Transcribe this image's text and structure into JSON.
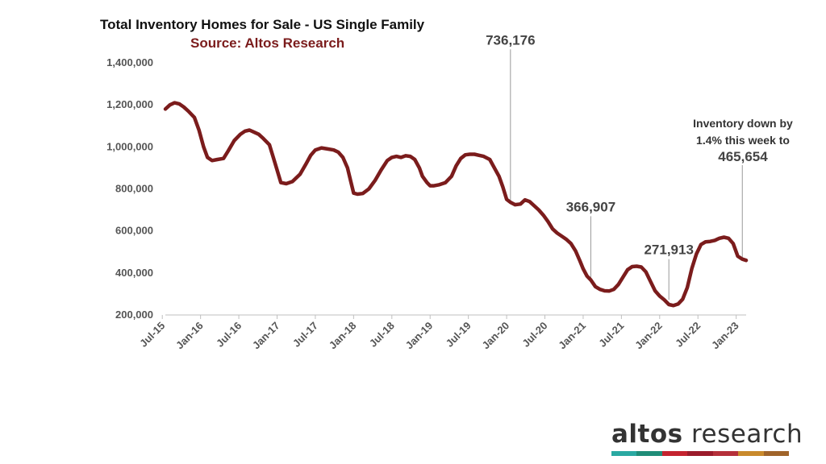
{
  "chart_data": {
    "type": "line",
    "title": "Total Inventory Homes for Sale - US Single Family",
    "subtitle": "Source: Altos Research",
    "ylim": [
      200000,
      1400000
    ],
    "yticks": [
      200000,
      400000,
      600000,
      800000,
      1000000,
      1200000,
      1400000
    ],
    "ytick_labels": [
      "200,000",
      "400,000",
      "600,000",
      "800,000",
      "1,000,000",
      "1,200,000",
      "1,400,000"
    ],
    "xlim": [
      2015.54,
      2023.13
    ],
    "xticks": [
      2015.5,
      2016.0,
      2016.5,
      2017.0,
      2017.5,
      2018.0,
      2018.5,
      2019.0,
      2019.5,
      2020.0,
      2020.5,
      2021.0,
      2021.5,
      2022.0,
      2022.5,
      2023.0
    ],
    "xtick_labels": [
      "Jul-15",
      "Jan-16",
      "Jul-16",
      "Jan-17",
      "Jul-17",
      "Jan-18",
      "Jul-18",
      "Jan-19",
      "Jul-19",
      "Jan-20",
      "Jul-20",
      "Jan-21",
      "Jul-21",
      "Jan-22",
      "Jul-22",
      "Jan-23"
    ],
    "line_color": "#7b1c1c",
    "series": [
      {
        "name": "Total Inventory",
        "x": [
          2015.54,
          2015.6,
          2015.66,
          2015.72,
          2015.78,
          2015.84,
          2015.92,
          2015.98,
          2016.04,
          2016.09,
          2016.15,
          2016.22,
          2016.3,
          2016.36,
          2016.44,
          2016.52,
          2016.58,
          2016.64,
          2016.7,
          2016.76,
          2016.82,
          2016.9,
          2016.95,
          2017.0,
          2017.05,
          2017.12,
          2017.2,
          2017.3,
          2017.38,
          2017.44,
          2017.5,
          2017.58,
          2017.66,
          2017.74,
          2017.8,
          2017.86,
          2017.92,
          2017.96,
          2018.0,
          2018.05,
          2018.12,
          2018.2,
          2018.28,
          2018.36,
          2018.44,
          2018.5,
          2018.56,
          2018.62,
          2018.68,
          2018.74,
          2018.8,
          2018.86,
          2018.9,
          2018.96,
          2019.0,
          2019.05,
          2019.12,
          2019.2,
          2019.28,
          2019.34,
          2019.4,
          2019.46,
          2019.52,
          2019.58,
          2019.64,
          2019.7,
          2019.78,
          2019.84,
          2019.9,
          2019.95,
          2020.0,
          2020.05,
          2020.11,
          2020.18,
          2020.24,
          2020.3,
          2020.36,
          2020.42,
          2020.48,
          2020.54,
          2020.6,
          2020.66,
          2020.72,
          2020.78,
          2020.84,
          2020.9,
          2020.96,
          2021.0,
          2021.05,
          2021.1,
          2021.16,
          2021.22,
          2021.28,
          2021.34,
          2021.4,
          2021.46,
          2021.52,
          2021.58,
          2021.64,
          2021.7,
          2021.76,
          2021.82,
          2021.88,
          2021.94,
          2022.0,
          2022.06,
          2022.12,
          2022.18,
          2022.24,
          2022.3,
          2022.36,
          2022.42,
          2022.48,
          2022.54,
          2022.6,
          2022.66,
          2022.72,
          2022.78,
          2022.84,
          2022.9,
          2022.96,
          2023.02,
          2023.08,
          2023.13
        ],
        "values": [
          1180000,
          1200000,
          1210000,
          1205000,
          1190000,
          1170000,
          1140000,
          1080000,
          1000000,
          950000,
          935000,
          940000,
          945000,
          980000,
          1030000,
          1060000,
          1075000,
          1080000,
          1070000,
          1060000,
          1040000,
          1010000,
          950000,
          890000,
          830000,
          825000,
          835000,
          870000,
          920000,
          960000,
          985000,
          995000,
          990000,
          985000,
          975000,
          950000,
          900000,
          840000,
          780000,
          775000,
          778000,
          800000,
          840000,
          890000,
          935000,
          950000,
          955000,
          950000,
          958000,
          955000,
          940000,
          900000,
          860000,
          830000,
          815000,
          815000,
          820000,
          830000,
          860000,
          910000,
          945000,
          962000,
          965000,
          965000,
          960000,
          955000,
          940000,
          900000,
          860000,
          810000,
          750000,
          736176,
          725000,
          728000,
          748000,
          740000,
          720000,
          700000,
          675000,
          645000,
          610000,
          590000,
          575000,
          560000,
          540000,
          505000,
          455000,
          420000,
          385000,
          366907,
          335000,
          322000,
          315000,
          314000,
          322000,
          345000,
          380000,
          415000,
          430000,
          432000,
          428000,
          405000,
          360000,
          315000,
          290000,
          271913,
          250000,
          245000,
          252000,
          275000,
          330000,
          420000,
          490000,
          535000,
          548000,
          550000,
          555000,
          565000,
          570000,
          565000,
          540000,
          480000,
          465654,
          460000
        ]
      }
    ],
    "annotations": [
      {
        "text": "736,176",
        "x": 2020.05,
        "y": 736176
      },
      {
        "text": "366,907",
        "x": 2021.1,
        "y": 366907
      },
      {
        "text": "271,913",
        "x": 2022.12,
        "y": 271913
      },
      {
        "text_lines": [
          "Inventory down by",
          "1.4% this week to",
          "465,654"
        ],
        "x": 2023.08,
        "y": 465654
      }
    ]
  },
  "logo": {
    "bold": "altos",
    "light": " research",
    "colors": [
      "#2aa9a2",
      "#1f8d78",
      "#c4232f",
      "#9b1b2b",
      "#b5303a",
      "#c98a2c",
      "#a0642a"
    ]
  }
}
